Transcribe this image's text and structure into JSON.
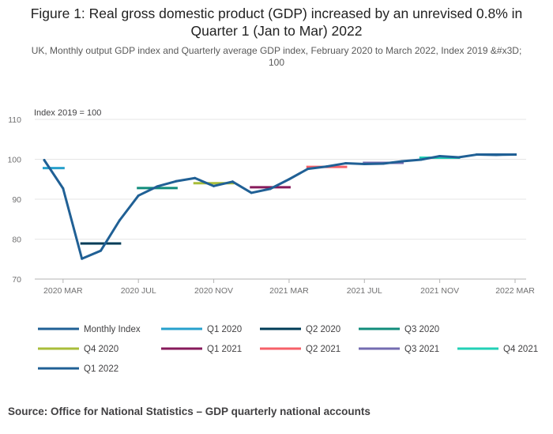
{
  "title": "Figure 1: Real gross domestic product (GDP) increased by an unrevised 0.8% in Quarter 1 (Jan to Mar) 2022",
  "subtitle": "UK, Monthly output GDP index and Quarterly average GDP index, February 2020 to March 2022, Index 2019 &#x3D; 100",
  "source": "Source:  Office for National Statistics – GDP quarterly national accounts",
  "chart_data": {
    "type": "line",
    "y_axis_title": "Index 2019 = 100",
    "ylim": [
      70,
      110
    ],
    "y_ticks": [
      70,
      80,
      90,
      100,
      110
    ],
    "grid": true,
    "legend_position": "bottom",
    "months": [
      "2020 FEB",
      "2020 MAR",
      "2020 APR",
      "2020 MAY",
      "2020 JUN",
      "2020 JUL",
      "2020 AUG",
      "2020 SEP",
      "2020 OCT",
      "2020 NOV",
      "2020 DEC",
      "2021 JAN",
      "2021 FEB",
      "2021 MAR",
      "2021 APR",
      "2021 MAY",
      "2021 JUN",
      "2021 JUL",
      "2021 AUG",
      "2021 SEP",
      "2021 OCT",
      "2021 NOV",
      "2021 DEC",
      "2022 JAN",
      "2022 FEB",
      "2022 MAR"
    ],
    "x_tick_labels": [
      {
        "month_index": 1,
        "label": "2020 MAR"
      },
      {
        "month_index": 5,
        "label": "2020 JUL"
      },
      {
        "month_index": 9,
        "label": "2020 NOV"
      },
      {
        "month_index": 13,
        "label": "2021 MAR"
      },
      {
        "month_index": 17,
        "label": "2021 JUL"
      },
      {
        "month_index": 21,
        "label": "2021 NOV"
      },
      {
        "month_index": 25,
        "label": "2022 MAR"
      }
    ],
    "series": [
      {
        "name": "Monthly Index",
        "color": "#206095",
        "kind": "line",
        "values": [
          99.8,
          92.7,
          75.1,
          77.1,
          84.7,
          90.9,
          93.2,
          94.5,
          95.3,
          93.3,
          94.4,
          91.6,
          92.6,
          95.0,
          97.6,
          98.2,
          99.0,
          98.8,
          98.9,
          99.5,
          99.9,
          100.8,
          100.5,
          101.2,
          101.1,
          101.2
        ]
      },
      {
        "name": "Q1 2020",
        "color": "#27a0cc",
        "kind": "quarter",
        "start_index": 0,
        "end_index": 1,
        "value": 97.8
      },
      {
        "name": "Q2 2020",
        "color": "#003c57",
        "kind": "quarter",
        "start_index": 2,
        "end_index": 4,
        "value": 78.9
      },
      {
        "name": "Q3 2020",
        "color": "#118c7b",
        "kind": "quarter",
        "start_index": 5,
        "end_index": 7,
        "value": 92.8
      },
      {
        "name": "Q4 2020",
        "color": "#a8bd3a",
        "kind": "quarter",
        "start_index": 8,
        "end_index": 10,
        "value": 94.0
      },
      {
        "name": "Q1 2021",
        "color": "#871a5b",
        "kind": "quarter",
        "start_index": 11,
        "end_index": 13,
        "value": 93.0
      },
      {
        "name": "Q2 2021",
        "color": "#f66068",
        "kind": "quarter",
        "start_index": 14,
        "end_index": 16,
        "value": 98.1
      },
      {
        "name": "Q3 2021",
        "color": "#746cb1",
        "kind": "quarter",
        "start_index": 17,
        "end_index": 19,
        "value": 99.1
      },
      {
        "name": "Q4 2021",
        "color": "#22d0b6",
        "kind": "quarter",
        "start_index": 20,
        "end_index": 22,
        "value": 100.4
      },
      {
        "name": "Q1 2022",
        "color": "#206095",
        "kind": "quarter",
        "start_index": 23,
        "end_index": 25,
        "value": 101.2
      }
    ]
  }
}
